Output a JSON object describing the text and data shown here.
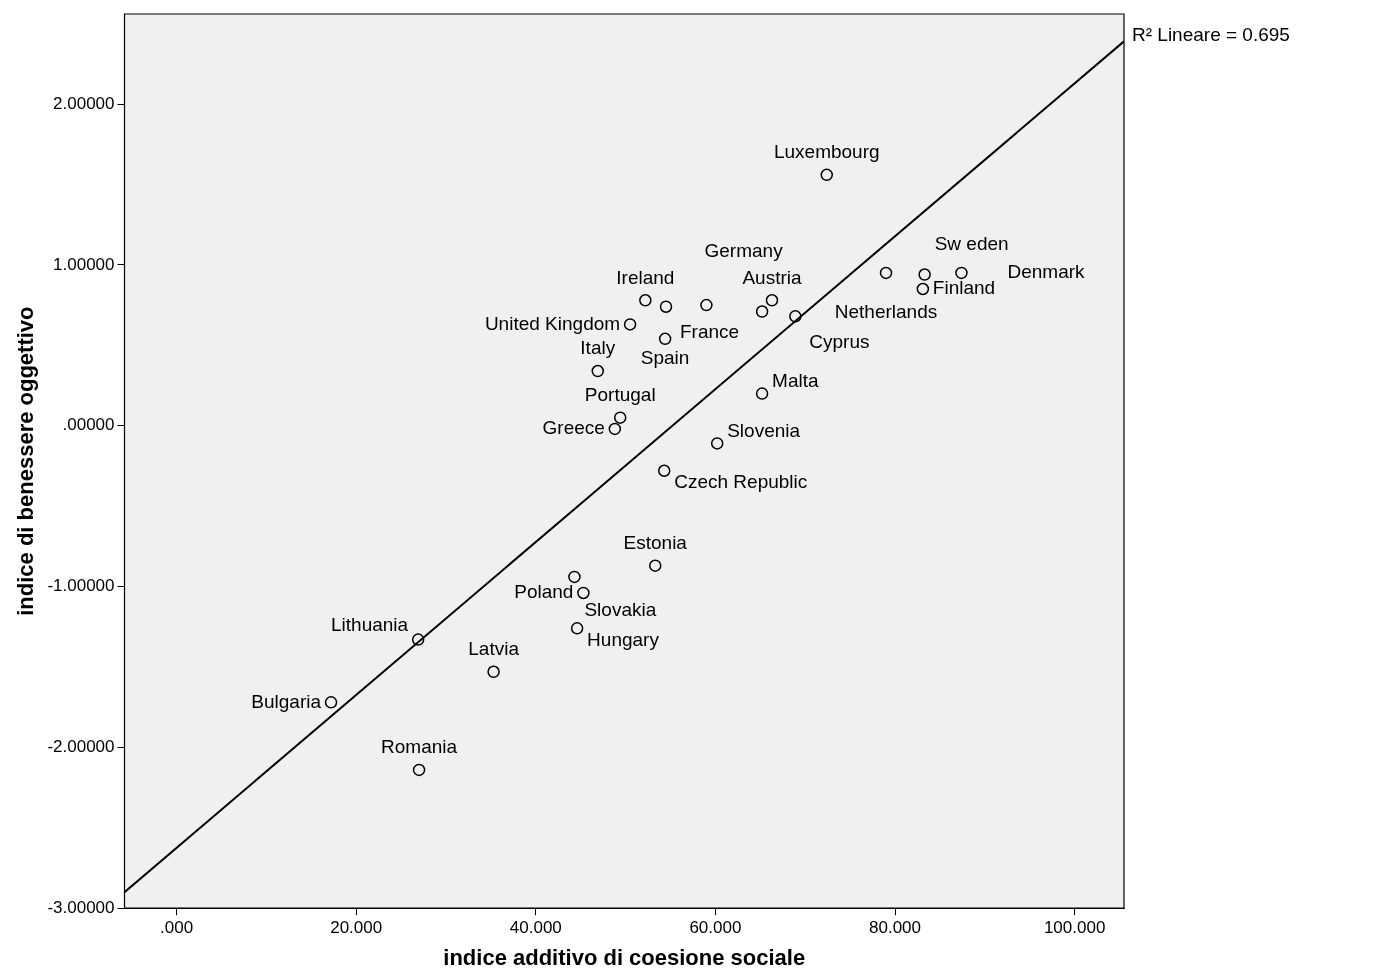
{
  "chart_data": {
    "type": "scatter",
    "xlabel": "indice additivo di coesione sociale",
    "ylabel": "indice di benessere oggettivo",
    "xlim": [
      -5.8,
      105.5
    ],
    "ylim": [
      -3.0,
      2.56
    ],
    "xticks": [
      {
        "value": 0,
        "label": ".000"
      },
      {
        "value": 20,
        "label": "20.000"
      },
      {
        "value": 40,
        "label": "40.000"
      },
      {
        "value": 60,
        "label": "60.000"
      },
      {
        "value": 80,
        "label": "80.000"
      },
      {
        "value": 100,
        "label": "100.000"
      }
    ],
    "yticks": [
      {
        "value": -3,
        "label": "-3.00000"
      },
      {
        "value": -2,
        "label": "-2.00000"
      },
      {
        "value": -1,
        "label": "-1.00000"
      },
      {
        "value": 0,
        "label": ".00000"
      },
      {
        "value": 1,
        "label": "1.00000"
      },
      {
        "value": 2,
        "label": "2.00000"
      }
    ],
    "grid": false,
    "legend": false,
    "marker": "circle",
    "series": [
      {
        "type": "scatter",
        "color": "#000000",
        "x": [
          72.4,
          79.0,
          83.3,
          83.1,
          87.4,
          66.3,
          65.2,
          68.9,
          65.2,
          60.2,
          54.3,
          48.8,
          49.4,
          46.9,
          50.5,
          52.2,
          54.5,
          54.4,
          59.0,
          53.3,
          44.3,
          45.3,
          44.6,
          26.9,
          35.3,
          17.2,
          27.0
        ],
        "values": [
          1.56,
          0.95,
          0.94,
          0.85,
          0.95,
          0.78,
          0.71,
          0.68,
          0.2,
          -0.11,
          -0.28,
          -0.02,
          0.05,
          0.34,
          0.63,
          0.78,
          0.74,
          0.54,
          0.75,
          -0.87,
          -0.94,
          -1.04,
          -1.26,
          -1.33,
          -1.53,
          -1.72,
          -2.14
        ]
      },
      {
        "type": "line",
        "color": "#000000",
        "x": [
          -5.8,
          105.5
        ],
        "values": [
          -2.9,
          2.39
        ],
        "marker": "none"
      }
    ],
    "annotations": [
      "R² Lineare = 0.695",
      {
        "text": "Luxembourg",
        "x": 72.4,
        "y": 1.56
      },
      {
        "text": "Netherlands",
        "x": 79.0,
        "y": 0.95
      },
      {
        "text": "Sw eden",
        "x": 83.3,
        "y": 0.94
      },
      {
        "text": "Finland",
        "x": 83.1,
        "y": 0.85
      },
      {
        "text": "Denmark",
        "x": 87.4,
        "y": 0.95
      },
      {
        "text": "Austria",
        "x": 66.3,
        "y": 0.78
      },
      {
        "text": "Cyprus",
        "x": 68.9,
        "y": 0.68
      },
      {
        "text": "Malta",
        "x": 65.2,
        "y": 0.2
      },
      {
        "text": "Slovenia",
        "x": 60.2,
        "y": -0.11
      },
      {
        "text": "Czech Republic",
        "x": 54.3,
        "y": -0.28
      },
      {
        "text": "Greece",
        "x": 48.8,
        "y": -0.02
      },
      {
        "text": "Portugal",
        "x": 49.4,
        "y": 0.05
      },
      {
        "text": "Italy",
        "x": 46.9,
        "y": 0.34
      },
      {
        "text": "United Kingdom",
        "x": 50.5,
        "y": 0.63
      },
      {
        "text": "Ireland",
        "x": 52.2,
        "y": 0.78
      },
      {
        "text": "France",
        "x": 54.5,
        "y": 0.74
      },
      {
        "text": "Spain",
        "x": 54.4,
        "y": 0.54
      },
      {
        "text": "Germany",
        "x": 59.0,
        "y": 0.75
      },
      {
        "text": "Estonia",
        "x": 53.3,
        "y": -0.87
      },
      {
        "text": "Slovakia",
        "x": 44.3,
        "y": -0.94
      },
      {
        "text": "Poland",
        "x": 45.3,
        "y": -1.04
      },
      {
        "text": "Hungary",
        "x": 44.6,
        "y": -1.26
      },
      {
        "text": "Lithuania",
        "x": 26.9,
        "y": -1.33
      },
      {
        "text": "Latvia",
        "x": 35.3,
        "y": -1.53
      },
      {
        "text": "Bulgaria",
        "x": 17.2,
        "y": -1.72
      },
      {
        "text": "Romania",
        "x": 27.0,
        "y": -2.14
      }
    ]
  }
}
